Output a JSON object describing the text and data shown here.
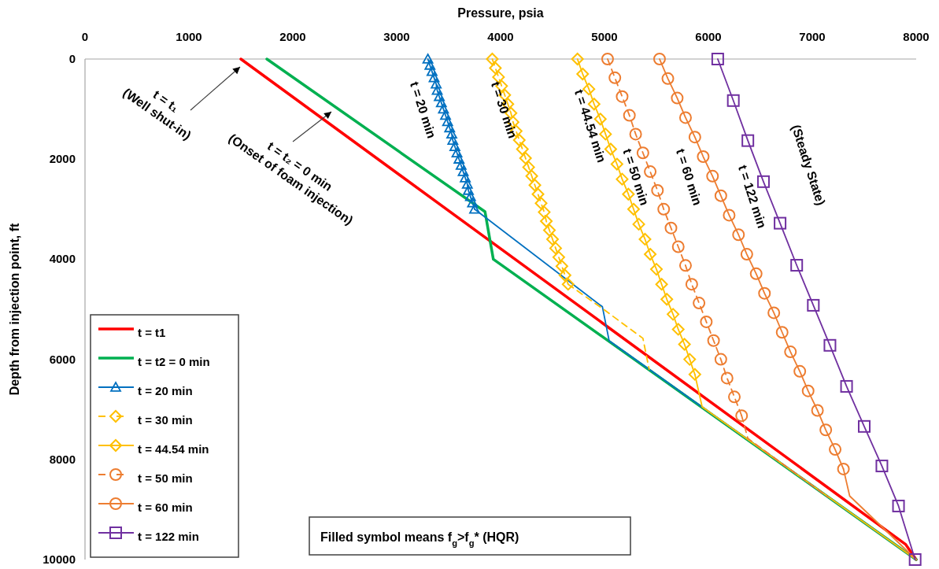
{
  "chart_data": {
    "type": "line",
    "xlabel": "Pressure, psia",
    "ylabel": "Depth from injection point, ft",
    "xlim": [
      0,
      8000
    ],
    "xticks": [
      0,
      1000,
      2000,
      3000,
      4000,
      5000,
      6000,
      7000,
      8000
    ],
    "ylim": [
      10000,
      0
    ],
    "yticks": [
      0,
      2000,
      4000,
      6000,
      8000,
      10000
    ],
    "grid": false,
    "legend": "bottom left",
    "series": [
      {
        "name": "t = t1",
        "color": "#ff0000",
        "marker": "none",
        "line_style": "solid",
        "x": [
          1500,
          7900,
          8000
        ],
        "values": [
          0,
          9700,
          10000
        ]
      },
      {
        "name": "t = t2 = 0 min",
        "color": "#00b050",
        "marker": "none",
        "line_style": "solid",
        "x": [
          1750,
          3850,
          3930,
          8000
        ],
        "values": [
          0,
          3050,
          4000,
          10000
        ]
      },
      {
        "name": "t = 20 min",
        "color": "#0070c0",
        "marker": "triangle",
        "line_style": "solid",
        "x": [
          3300,
          3320,
          3340,
          3360,
          3380,
          3390,
          3410,
          3430,
          3450,
          3470,
          3490,
          3510,
          3530,
          3540,
          3560,
          3580,
          3600,
          3620,
          3640,
          3660,
          3680,
          3690,
          3710,
          3730,
          3750
        ],
        "values": [
          0,
          125,
          250,
          375,
          500,
          625,
          750,
          875,
          1000,
          1125,
          1250,
          1375,
          1500,
          1625,
          1750,
          1875,
          2000,
          2125,
          2250,
          2375,
          2500,
          2625,
          2750,
          2875,
          3000
        ]
      },
      {
        "color": "#0070c0",
        "marker": "none",
        "line_style": "solid",
        "x": [
          3750,
          4980,
          5045,
          8000
        ],
        "values": [
          3000,
          4950,
          5630,
          10000
        ]
      },
      {
        "name": "t = 30 min",
        "color": "#ffc000",
        "marker": "diamond",
        "line_style": "dashed",
        "x": [
          3920,
          3950,
          3980,
          4010,
          4040,
          4070,
          4100,
          4120,
          4150,
          4180,
          4210,
          4240,
          4270,
          4300,
          4330,
          4360,
          4390,
          4420,
          4440,
          4470,
          4500,
          4530,
          4560,
          4590,
          4620,
          4650
        ],
        "values": [
          0,
          180,
          360,
          540,
          720,
          900,
          1080,
          1260,
          1440,
          1620,
          1800,
          1980,
          2160,
          2340,
          2520,
          2700,
          2880,
          3060,
          3240,
          3420,
          3600,
          3780,
          3960,
          4140,
          4320,
          4500
        ]
      },
      {
        "color": "#ffc000",
        "marker": "none",
        "line_style": "dashed",
        "x": [
          4650,
          4990,
          5370,
          5430
        ],
        "values": [
          4500,
          5000,
          5580,
          6200
        ]
      },
      {
        "name": "t = 44.54 min",
        "color": "#ffc000",
        "marker": "diamond",
        "line_style": "solid",
        "x": [
          4740,
          4790,
          4850,
          4900,
          4960,
          5010,
          5060,
          5120,
          5170,
          5230,
          5280,
          5330,
          5390,
          5440,
          5500,
          5550,
          5600,
          5660,
          5710,
          5770,
          5820,
          5870
        ],
        "values": [
          0,
          300,
          600,
          900,
          1200,
          1500,
          1800,
          2100,
          2400,
          2700,
          3000,
          3300,
          3600,
          3900,
          4200,
          4500,
          4800,
          5100,
          5400,
          5700,
          6000,
          6300
        ]
      },
      {
        "color": "#ffc000",
        "marker": "none",
        "line_style": "solid",
        "x": [
          5870,
          5940,
          8000
        ],
        "values": [
          6300,
          6950,
          10000
        ]
      },
      {
        "name": "t = 50 min",
        "color": "#ed7d31",
        "marker": "circle",
        "line_style": "dashed",
        "x": [
          5030,
          5100,
          5170,
          5240,
          5300,
          5370,
          5440,
          5510,
          5570,
          5640,
          5710,
          5780,
          5840,
          5910,
          5980,
          6050,
          6120,
          6180,
          6250,
          6320
        ],
        "values": [
          0,
          375,
          750,
          1125,
          1500,
          1875,
          2250,
          2625,
          3000,
          3375,
          3750,
          4125,
          4500,
          4875,
          5250,
          5625,
          6000,
          6375,
          6750,
          7125
        ]
      },
      {
        "color": "#ed7d31",
        "marker": "none",
        "line_style": "dashed",
        "x": [
          6320,
          6380,
          7150
        ],
        "values": [
          7125,
          7580,
          8750
        ]
      },
      {
        "name": "t = 60 min",
        "color": "#ed7d31",
        "marker": "circle",
        "line_style": "solid",
        "x": [
          5530,
          5610,
          5700,
          5780,
          5870,
          5950,
          6040,
          6120,
          6200,
          6290,
          6370,
          6460,
          6540,
          6630,
          6710,
          6790,
          6880,
          6960,
          7050,
          7130,
          7220,
          7300
        ],
        "values": [
          0,
          390,
          780,
          1170,
          1560,
          1950,
          2340,
          2730,
          3120,
          3510,
          3900,
          4290,
          4680,
          5070,
          5460,
          5850,
          6240,
          6630,
          7020,
          7410,
          7800,
          8190
        ]
      },
      {
        "color": "#ed7d31",
        "marker": "none",
        "line_style": "solid",
        "x": [
          7300,
          7360,
          8000
        ],
        "values": [
          8190,
          8730,
          10000
        ]
      },
      {
        "name": "t = 122 min",
        "color": "#7030a0",
        "marker": "square",
        "line_style": "solid",
        "x": [
          6090,
          6240,
          6380,
          6530,
          6690,
          6850,
          7010,
          7170,
          7330,
          7500,
          7670,
          7830,
          7990
        ],
        "values": [
          0,
          830,
          1630,
          2450,
          3280,
          4120,
          4920,
          5720,
          6540,
          7340,
          8130,
          8930,
          10000
        ]
      }
    ],
    "annotations": [
      "t = t₁\n(Well shut-in)",
      "t = t₂ = 0 min\n(Onset of foam injection)",
      "t = 20 min",
      "t = 30 min",
      "t = 44.54 min",
      "t = 50 min",
      "t = 60 min",
      "t = 122 min",
      "(Steady State)",
      "Filled symbol means f$_{g}$>f$_{g}$* (HQR)"
    ]
  }
}
